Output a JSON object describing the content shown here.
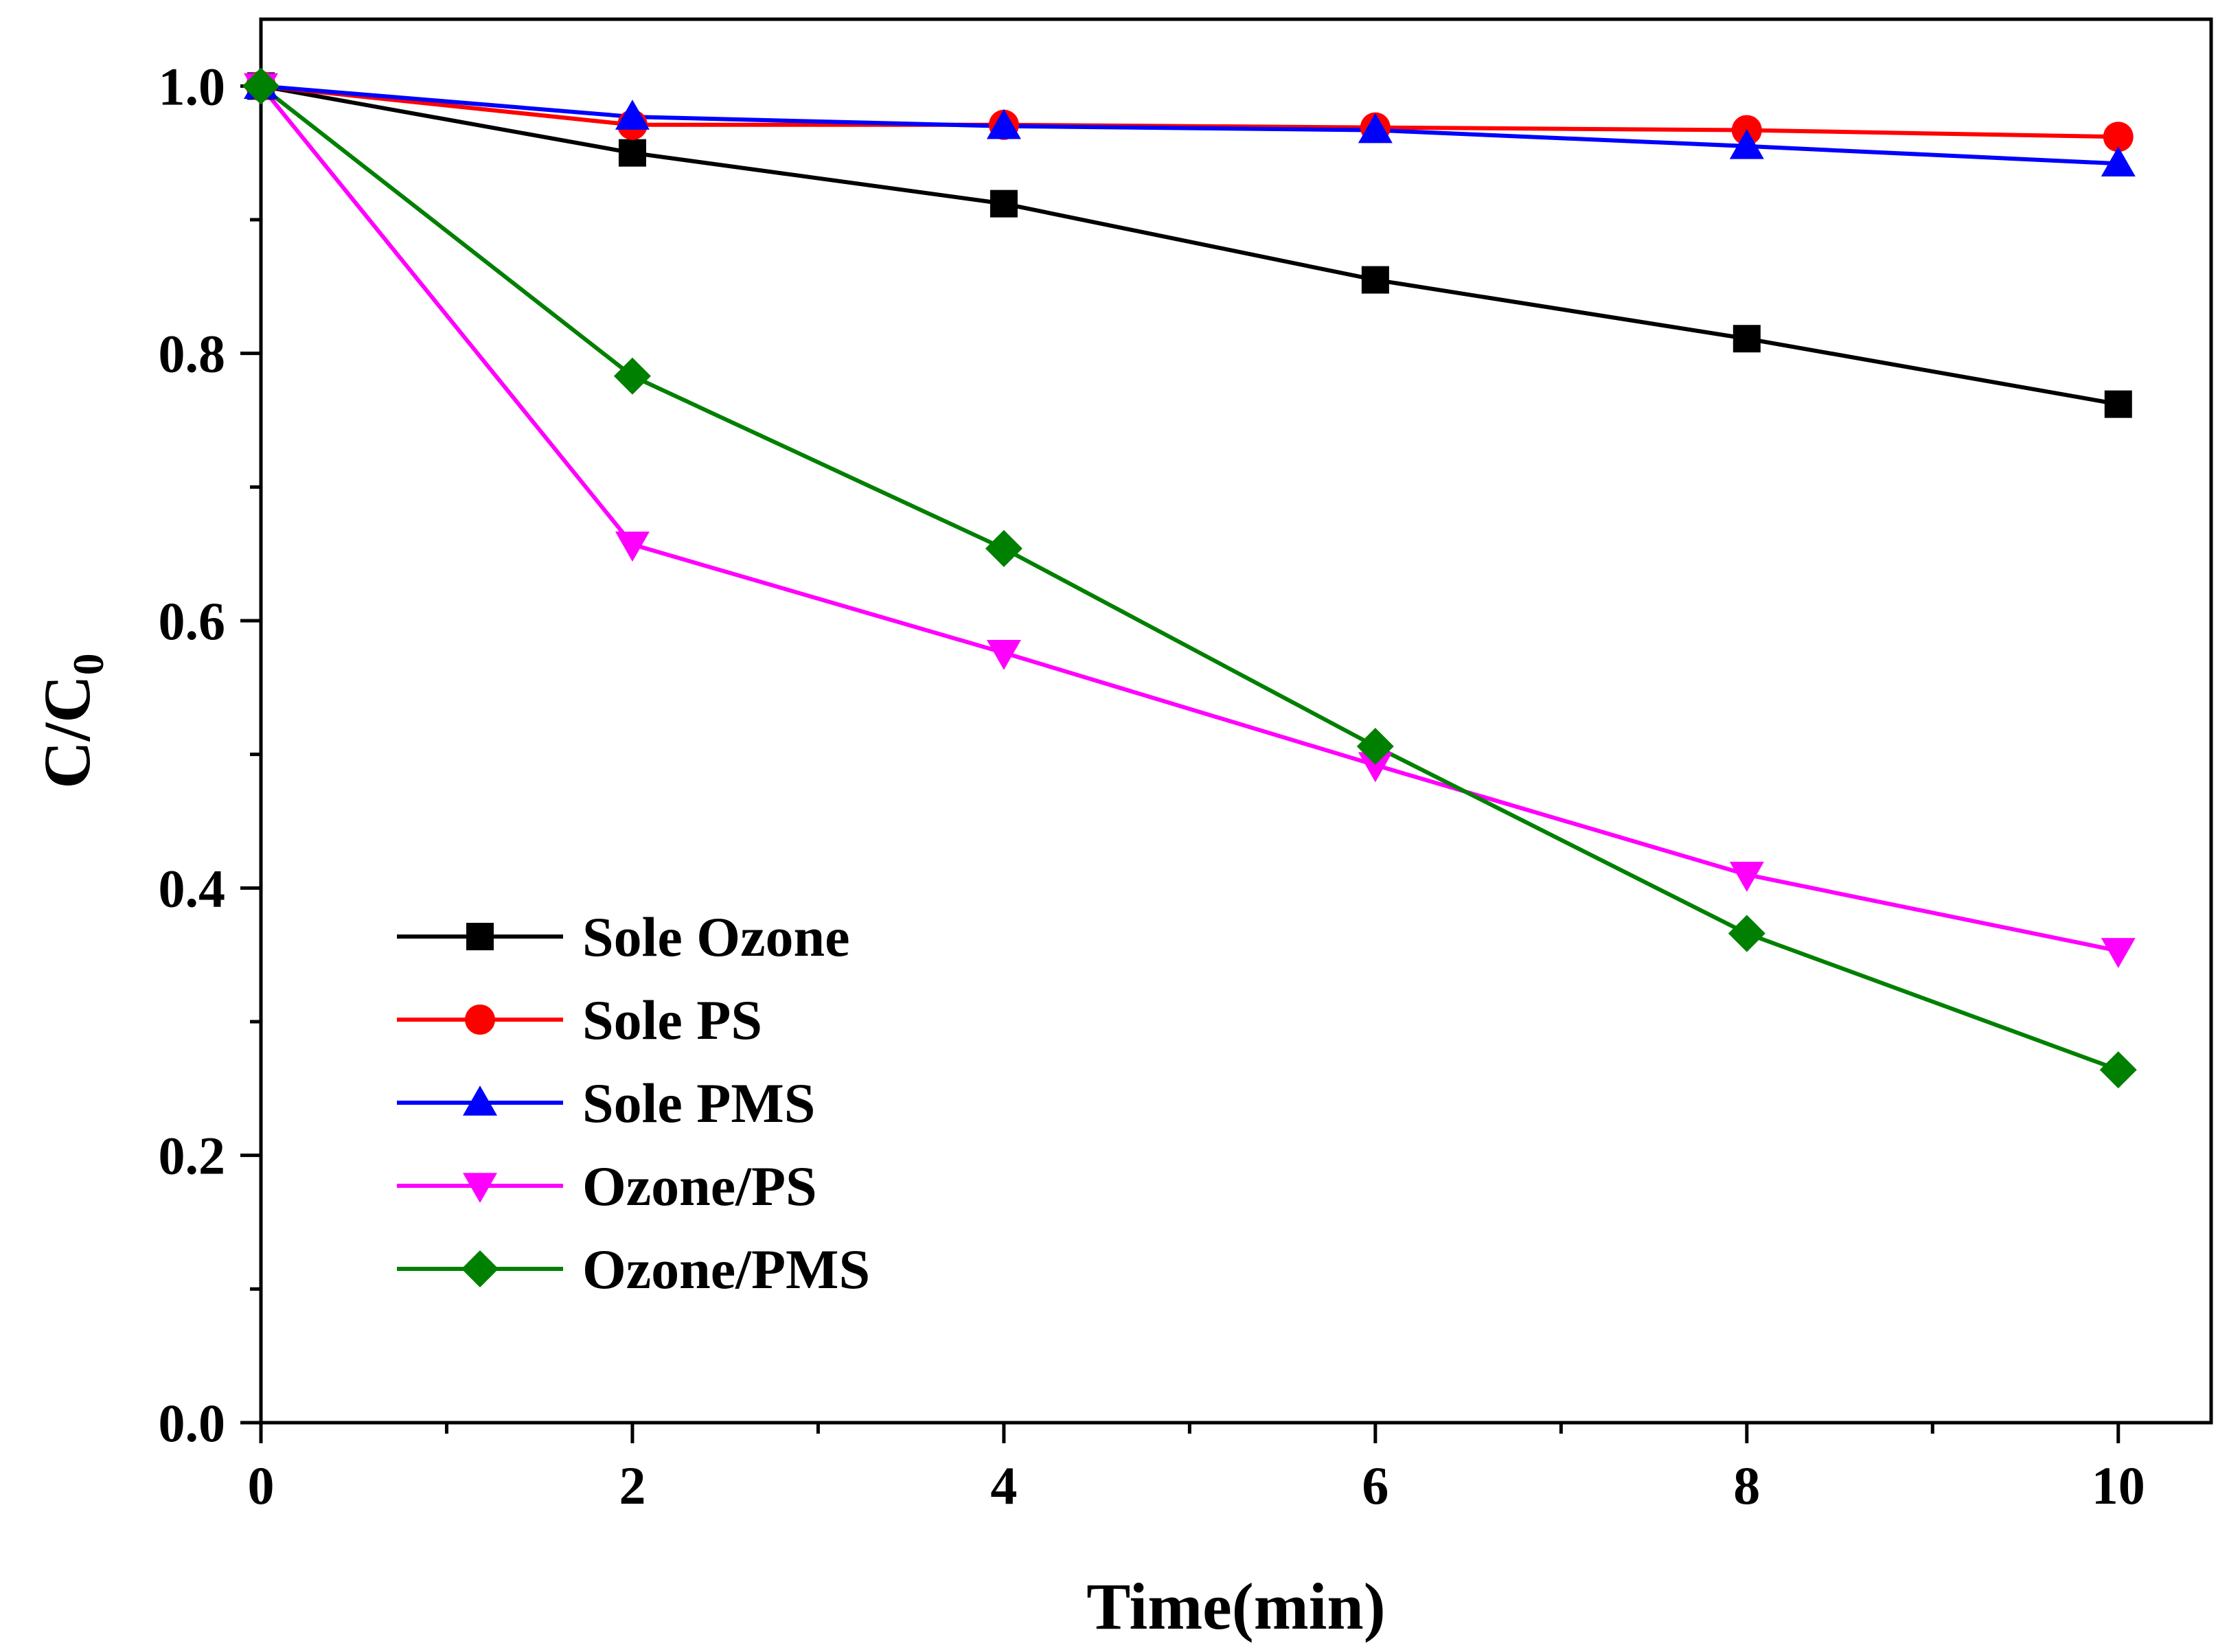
{
  "chart_data": {
    "type": "line",
    "xlabel": "Time(min)",
    "ylabel_main": "C/C",
    "ylabel_sub": "0",
    "xlim": [
      0,
      10.5
    ],
    "ylim": [
      0,
      1.05
    ],
    "x_ticks": [
      0,
      2,
      4,
      6,
      8,
      10
    ],
    "x_tick_labels": [
      "0",
      "2",
      "4",
      "6",
      "8",
      "10"
    ],
    "y_ticks": [
      0,
      0.2,
      0.4,
      0.6,
      0.8,
      1.0
    ],
    "y_tick_labels": [
      "0.0",
      "0.2",
      "0.4",
      "0.6",
      "0.8",
      "1.0"
    ],
    "grid": false,
    "legend_position": "bottom-left",
    "x": [
      0,
      2,
      4,
      6,
      8,
      10
    ],
    "series": [
      {
        "name": "Sole Ozone",
        "color": "#000000",
        "marker": "square",
        "values": [
          1.0,
          0.95,
          0.912,
          0.855,
          0.811,
          0.762
        ]
      },
      {
        "name": "Sole PS",
        "color": "#ff0000",
        "marker": "circle",
        "values": [
          1.0,
          0.971,
          0.971,
          0.969,
          0.967,
          0.962
        ]
      },
      {
        "name": "Sole PMS",
        "color": "#0000ff",
        "marker": "triangle-up",
        "values": [
          1.0,
          0.977,
          0.97,
          0.967,
          0.955,
          0.942
        ]
      },
      {
        "name": "Ozone/PS",
        "color": "#ff00ff",
        "marker": "triangle-down",
        "values": [
          1.0,
          0.657,
          0.576,
          0.492,
          0.41,
          0.353
        ]
      },
      {
        "name": "Ozone/PMS",
        "color": "#008000",
        "marker": "diamond",
        "values": [
          1.0,
          0.783,
          0.654,
          0.506,
          0.366,
          0.264
        ]
      }
    ]
  }
}
